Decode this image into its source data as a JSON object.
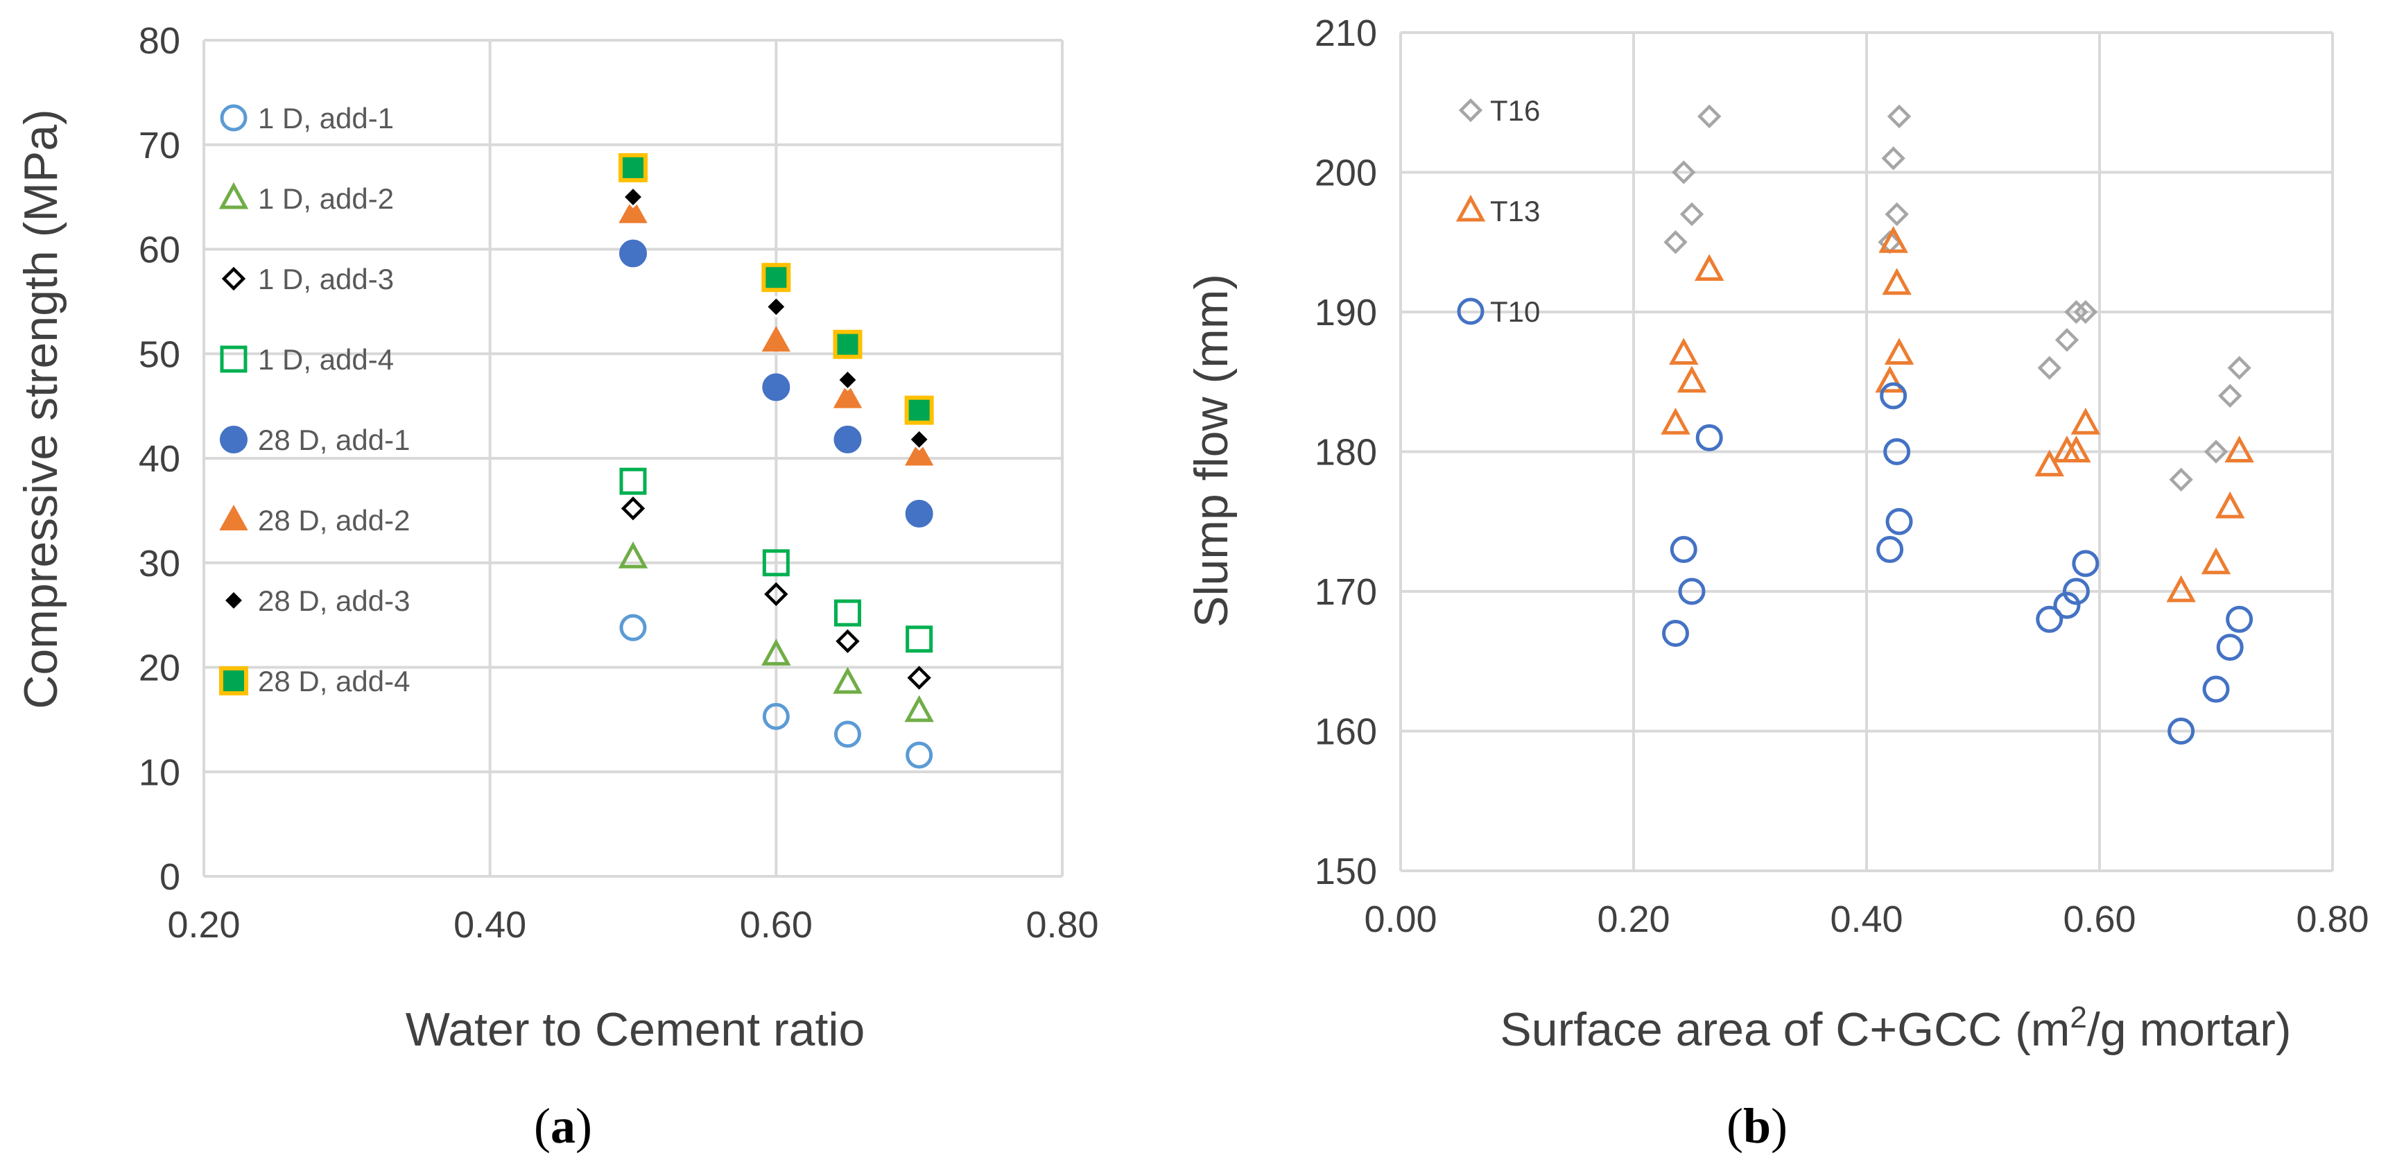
{
  "chart_data": [
    {
      "type": "scatter",
      "panel_label": "a",
      "xlabel": "Water to Cement ratio",
      "ylabel": "Compressive strength (MPa)",
      "xlim": [
        0.2,
        0.8
      ],
      "ylim": [
        0,
        80
      ],
      "xticks": [
        "0.20",
        "0.40",
        "0.60",
        "0.80"
      ],
      "yticks": [
        "0",
        "10",
        "20",
        "30",
        "40",
        "50",
        "60",
        "70",
        "80"
      ],
      "grid": true,
      "legend_position": "left-inside",
      "series": [
        {
          "name": "1 D, add-1",
          "marker": "circle-open",
          "color": "#5b9bd5",
          "x": [
            0.5,
            0.6,
            0.65,
            0.7
          ],
          "y": [
            23.8,
            15.3,
            13.6,
            11.6
          ]
        },
        {
          "name": "1 D, add-2",
          "marker": "triangle-open",
          "color": "#70ad47",
          "x": [
            0.5,
            0.6,
            0.65,
            0.7
          ],
          "y": [
            30.5,
            21.2,
            18.5,
            15.8
          ]
        },
        {
          "name": "1 D, add-3",
          "marker": "diamond-open",
          "color": "#000000",
          "x": [
            0.5,
            0.6,
            0.65,
            0.7
          ],
          "y": [
            35.2,
            27.0,
            22.5,
            19.0
          ]
        },
        {
          "name": "1 D, add-4",
          "marker": "square-open",
          "color": "#00b050",
          "x": [
            0.5,
            0.6,
            0.65,
            0.7
          ],
          "y": [
            37.8,
            30.0,
            25.2,
            22.7
          ]
        },
        {
          "name": "28 D, add-1",
          "marker": "circle-filled",
          "color": "#4472c4",
          "x": [
            0.5,
            0.6,
            0.65,
            0.7
          ],
          "y": [
            59.6,
            46.8,
            41.8,
            34.7
          ]
        },
        {
          "name": "28 D, add-2",
          "marker": "triangle-filled",
          "color": "#ed7d31",
          "x": [
            0.5,
            0.6,
            0.65,
            0.7
          ],
          "y": [
            63.5,
            51.2,
            45.8,
            40.3
          ]
        },
        {
          "name": "28 D, add-3",
          "marker": "diamond-filled",
          "color": "#000000",
          "x": [
            0.5,
            0.6,
            0.65,
            0.7
          ],
          "y": [
            65.0,
            54.5,
            47.5,
            41.8
          ]
        },
        {
          "name": "28 D, add-4",
          "marker": "square-filled-outlined",
          "color": "#00a651",
          "edge": "#ffc000",
          "x": [
            0.5,
            0.6,
            0.65,
            0.7
          ],
          "y": [
            67.8,
            57.3,
            50.9,
            44.6
          ]
        }
      ]
    },
    {
      "type": "scatter",
      "panel_label": "b",
      "xlabel_main": "Surface area of C+GCC (m",
      "xlabel_sup": "2",
      "xlabel_tail": "/g mortar)",
      "ylabel": "Slump flow (mm)",
      "xlim": [
        0.0,
        0.8
      ],
      "ylim": [
        150,
        210
      ],
      "xticks": [
        "0.00",
        "0.20",
        "0.40",
        "0.60",
        "0.80"
      ],
      "yticks": [
        "150",
        "160",
        "170",
        "180",
        "190",
        "200",
        "210"
      ],
      "grid": true,
      "legend_position": "top-left-inside",
      "series": [
        {
          "name": "T16",
          "marker": "diamond-open",
          "color": "#a6a6a6",
          "x": [
            0.236,
            0.243,
            0.25,
            0.265,
            0.42,
            0.423,
            0.426,
            0.428,
            0.557,
            0.572,
            0.58,
            0.588,
            0.67,
            0.7,
            0.712,
            0.72
          ],
          "y": [
            195,
            200,
            197,
            204,
            195,
            201,
            197,
            204,
            186,
            188,
            190,
            190,
            178,
            180,
            184,
            186
          ]
        },
        {
          "name": "T13",
          "marker": "triangle-open",
          "color": "#ed7d31",
          "x": [
            0.236,
            0.243,
            0.25,
            0.265,
            0.42,
            0.423,
            0.426,
            0.428,
            0.557,
            0.572,
            0.58,
            0.588,
            0.67,
            0.7,
            0.712,
            0.72
          ],
          "y": [
            182,
            187,
            185,
            193,
            185,
            195,
            192,
            187,
            179,
            180,
            180,
            182,
            170,
            172,
            176,
            180
          ]
        },
        {
          "name": "T10",
          "marker": "circle-open",
          "color": "#4472c4",
          "x": [
            0.236,
            0.243,
            0.25,
            0.265,
            0.42,
            0.423,
            0.426,
            0.428,
            0.557,
            0.572,
            0.58,
            0.588,
            0.67,
            0.7,
            0.712,
            0.72
          ],
          "y": [
            167,
            173,
            170,
            181,
            173,
            184,
            180,
            175,
            168,
            169,
            170,
            172,
            160,
            163,
            166,
            168
          ]
        }
      ]
    }
  ]
}
